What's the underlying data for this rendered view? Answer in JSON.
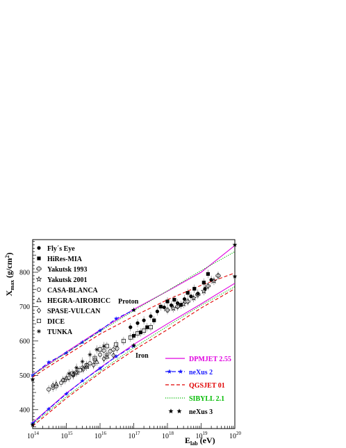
{
  "chart_data": {
    "type": "line",
    "xscale": "log",
    "xlim": [
      100000000000000.0,
      1e+20
    ],
    "ylim": [
      345,
      895
    ],
    "x_ticks": [
      {
        "base": "10",
        "exp": "14"
      },
      {
        "base": "10",
        "exp": "15"
      },
      {
        "base": "10",
        "exp": "16"
      },
      {
        "base": "10",
        "exp": "17"
      },
      {
        "base": "10",
        "exp": "18"
      },
      {
        "base": "10",
        "exp": "19"
      },
      {
        "base": "10",
        "exp": "20"
      }
    ],
    "y_ticks": [
      "400",
      "500",
      "600",
      "700",
      "800"
    ],
    "y_tick_values": [
      400,
      500,
      600,
      700,
      800
    ],
    "xlabel": {
      "main": "E",
      "sub": "lab",
      "unit": " (eV)"
    },
    "ylabel": {
      "main": "X",
      "sub": "max",
      "unit": " (g/cm",
      "sup": "2",
      "close": ")"
    },
    "annotations": {
      "proton": "Proton",
      "iron": "Iron"
    },
    "experiments_legend": [
      {
        "label": "Fly´s Eye",
        "marker": "filled-circle"
      },
      {
        "label": "HiRes-MIA",
        "marker": "filled-square"
      },
      {
        "label": "Yakutsk 1993",
        "marker": "open-cross"
      },
      {
        "label": "Yakutsk 2001",
        "marker": "open-star"
      },
      {
        "label": "CASA-BLANCA",
        "marker": "open-circle"
      },
      {
        "label": "HEGRA-AIROBICC",
        "marker": "open-triangle"
      },
      {
        "label": "SPASE-VULCAN",
        "marker": "open-diamond"
      },
      {
        "label": "DICE",
        "marker": "open-square"
      },
      {
        "label": "TUNKA",
        "marker": "asterisk"
      }
    ],
    "models_legend": [
      {
        "label": "DPMJET 2.55",
        "color": "#e000e0",
        "style": "solid"
      },
      {
        "label": "neXus 2",
        "color": "#1a1aff",
        "style": "dash-star"
      },
      {
        "label": "QGSJET 01",
        "color": "#e00000",
        "style": "dashed"
      },
      {
        "label": "SIBYLL 2.1",
        "color": "#00bb00",
        "style": "dotted"
      },
      {
        "label": "neXus 3",
        "color": "#000000",
        "style": "star"
      }
    ],
    "series": [
      {
        "name": "DPMJET 2.55",
        "component": "proton",
        "color": "#e000e0",
        "style": "solid",
        "x": [
          100000000000000.0,
          1000000000000000.0,
          1e+16,
          1e+17,
          1e+18,
          1e+19,
          1e+20
        ],
        "y": [
          502,
          568,
          632,
          692,
          745,
          800,
          878
        ]
      },
      {
        "name": "DPMJET 2.55",
        "component": "iron",
        "color": "#e000e0",
        "style": "solid",
        "x": [
          100000000000000.0,
          1000000000000000.0,
          1e+16,
          1e+17,
          1e+18,
          1e+19,
          1e+20
        ],
        "y": [
          362,
          448,
          522,
          590,
          650,
          708,
          768
        ]
      },
      {
        "name": "neXus 2",
        "component": "proton",
        "color": "#1a1aff",
        "style": "dash-star",
        "x": [
          100000000000000.0,
          300000000000000.0,
          1000000000000000.0,
          3000000000000000.0,
          1e+16,
          3e+16,
          1e+17
        ],
        "y": [
          500,
          538,
          565,
          596,
          630,
          665,
          690
        ]
      },
      {
        "name": "neXus 2",
        "component": "iron",
        "color": "#1a1aff",
        "style": "dash-star",
        "x": [
          100000000000000.0,
          300000000000000.0,
          1000000000000000.0,
          3000000000000000.0,
          1e+16,
          3e+16,
          1e+17
        ],
        "y": [
          360,
          402,
          446,
          484,
          520,
          555,
          585
        ]
      },
      {
        "name": "QGSJET 01",
        "component": "proton",
        "color": "#e00000",
        "style": "dashed",
        "x": [
          100000000000000.0,
          1000000000000000.0,
          1e+16,
          1e+17,
          1e+18,
          1e+19,
          1e+20
        ],
        "y": [
          495,
          558,
          620,
          672,
          720,
          762,
          798
        ]
      },
      {
        "name": "QGSJET 01",
        "component": "iron",
        "color": "#e00000",
        "style": "dashed",
        "x": [
          100000000000000.0,
          1000000000000000.0,
          1e+16,
          1e+17,
          1e+18,
          1e+19,
          1e+20
        ],
        "y": [
          352,
          433,
          507,
          573,
          633,
          696,
          752
        ]
      },
      {
        "name": "SIBYLL 2.1",
        "component": "proton",
        "color": "#00bb00",
        "style": "dotted",
        "x": [
          100000000000000.0,
          1000000000000000.0,
          1e+16,
          1e+17,
          1e+18,
          1e+19,
          1e+20
        ],
        "y": [
          500,
          565,
          628,
          688,
          746,
          805,
          860
        ]
      },
      {
        "name": "SIBYLL 2.1",
        "component": "iron",
        "color": "#00bb00",
        "style": "dotted",
        "x": [
          100000000000000.0,
          1000000000000000.0,
          1e+16,
          1e+17,
          1e+18,
          1e+19,
          1e+20
        ],
        "y": [
          358,
          438,
          512,
          580,
          643,
          704,
          758
        ]
      }
    ],
    "nexus3_points": [
      {
        "x": 100000000000000.0,
        "y": 488
      },
      {
        "x": 1e+17,
        "y": 690
      },
      {
        "x": 1e+20,
        "y": 880
      },
      {
        "x": 100000000000000.0,
        "y": 356
      },
      {
        "x": 1e+17,
        "y": 587
      },
      {
        "x": 1e+20,
        "y": 788
      }
    ],
    "experiment_data": [
      {
        "experiment": "Fly´s Eye",
        "marker": "filled-circle",
        "points": [
          [
            8e+16,
            640
          ],
          [
            1.3e+17,
            652
          ],
          [
            2e+17,
            660
          ],
          [
            3.2e+17,
            672
          ],
          [
            5e+17,
            686
          ],
          [
            8e+17,
            698
          ],
          [
            1.3e+18,
            704
          ],
          [
            2e+18,
            710
          ],
          [
            3.2e+18,
            722
          ],
          [
            5e+18,
            730
          ],
          [
            8e+18,
            738
          ],
          [
            1.3e+19,
            752
          ],
          [
            2e+19,
            778
          ]
        ]
      },
      {
        "experiment": "HiRes-MIA",
        "marker": "filled-square",
        "points": [
          [
            1e+17,
            615
          ],
          [
            1.6e+17,
            625
          ],
          [
            2.5e+17,
            640
          ],
          [
            4e+17,
            660
          ],
          [
            6.3e+17,
            700
          ],
          [
            1e+18,
            715
          ],
          [
            1.6e+18,
            720
          ],
          [
            2.5e+18,
            705
          ],
          [
            4e+18,
            740
          ],
          [
            6.3e+18,
            752
          ],
          [
            1.2e+19,
            770
          ],
          [
            1.6e+19,
            795
          ]
        ]
      },
      {
        "experiment": "Yakutsk 1993",
        "marker": "open-cross",
        "points": [
          [
            1e+18,
            690
          ],
          [
            2e+18,
            700
          ],
          [
            4e+18,
            715
          ],
          [
            8e+18,
            735
          ],
          [
            1.6e+19,
            760
          ],
          [
            3.2e+19,
            790
          ]
        ]
      },
      {
        "experiment": "Yakutsk 2001",
        "marker": "open-star",
        "points": [
          [
            1.5e+18,
            695
          ],
          [
            3e+18,
            708
          ],
          [
            6e+18,
            725
          ],
          [
            1.2e+19,
            745
          ],
          [
            2.4e+19,
            775
          ]
        ]
      },
      {
        "experiment": "CASA-BLANCA",
        "marker": "open-circle",
        "points": [
          [
            300000000000000.0,
            459
          ],
          [
            400000000000000.0,
            464
          ],
          [
            500000000000000.0,
            468
          ],
          [
            700000000000000.0,
            478
          ],
          [
            900000000000000.0,
            486
          ],
          [
            1200000000000000.0,
            493
          ],
          [
            1600000000000000.0,
            500
          ],
          [
            2000000000000000.0,
            510
          ],
          [
            3000000000000000.0,
            522
          ],
          [
            4000000000000000.0,
            530
          ],
          [
            5000000000000000.0,
            535
          ],
          [
            7000000000000000.0,
            545
          ],
          [
            1e+16,
            560
          ],
          [
            1.3e+16,
            572
          ],
          [
            1.6e+16,
            560
          ],
          [
            2e+16,
            570
          ],
          [
            2.5e+16,
            575
          ],
          [
            3.2e+16,
            578
          ]
        ]
      },
      {
        "experiment": "HEGRA-AIROBICC",
        "marker": "open-triangle",
        "points": [
          [
            500000000000000.0,
            475
          ],
          [
            1000000000000000.0,
            492
          ],
          [
            2000000000000000.0,
            508
          ],
          [
            4000000000000000.0,
            525
          ],
          [
            8000000000000000.0,
            540
          ],
          [
            1.6e+16,
            555
          ]
        ]
      },
      {
        "experiment": "SPASE-VULCAN",
        "marker": "open-diamond",
        "points": [
          [
            400000000000000.0,
            470
          ],
          [
            800000000000000.0,
            486
          ],
          [
            1600000000000000.0,
            502
          ],
          [
            3200000000000000.0,
            518
          ],
          [
            6400000000000000.0,
            530
          ],
          [
            1.3e+16,
            548
          ],
          [
            2.5e+16,
            558
          ]
        ]
      },
      {
        "experiment": "DICE",
        "marker": "open-square",
        "points": [
          [
            1500000000000000.0,
            505
          ],
          [
            2500000000000000.0,
            515
          ],
          [
            4000000000000000.0,
            528
          ],
          [
            7000000000000000.0,
            550
          ],
          [
            1e+16,
            575
          ],
          [
            1.6e+16,
            585
          ],
          [
            3e+16,
            590
          ],
          [
            5e+16,
            600
          ],
          [
            8e+16,
            610
          ],
          [
            1.3e+17,
            622
          ],
          [
            2e+17,
            630
          ],
          [
            3.2e+17,
            640
          ]
        ]
      },
      {
        "experiment": "TUNKA",
        "marker": "asterisk",
        "points": [
          [
            1200000000000000.0,
            505
          ],
          [
            2000000000000000.0,
            522
          ],
          [
            3000000000000000.0,
            540
          ],
          [
            5000000000000000.0,
            560
          ],
          [
            8000000000000000.0,
            575
          ],
          [
            1.3e+16,
            585
          ]
        ]
      }
    ]
  }
}
